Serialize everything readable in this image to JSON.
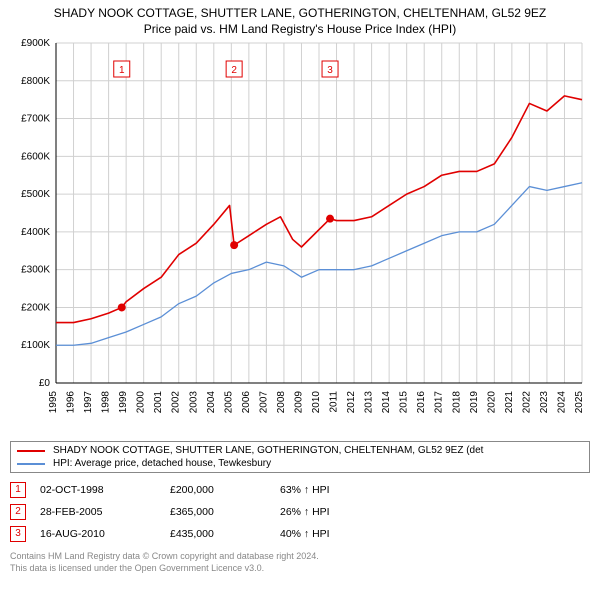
{
  "title_line1": "SHADY NOOK COTTAGE, SHUTTER LANE, GOTHERINGTON, CHELTENHAM, GL52 9EZ",
  "title_line2": "Price paid vs. HM Land Registry's House Price Index (HPI)",
  "chart": {
    "type": "line",
    "background_color": "#ffffff",
    "grid_color": "#d0d0d0",
    "axis_color": "#000000",
    "label_fontsize": 10,
    "tick_fontsize": 10,
    "xlim": [
      1995,
      2025
    ],
    "ylim": [
      0,
      900000
    ],
    "ytick_step": 100000,
    "ytick_labels": [
      "£0",
      "£100K",
      "£200K",
      "£300K",
      "£400K",
      "£500K",
      "£600K",
      "£700K",
      "£800K",
      "£900K"
    ],
    "xtick_step": 1,
    "xtick_labels": [
      "1995",
      "1996",
      "1997",
      "1998",
      "1999",
      "2000",
      "2001",
      "2002",
      "2003",
      "2004",
      "2005",
      "2006",
      "2007",
      "2008",
      "2009",
      "2010",
      "2011",
      "2012",
      "2013",
      "2014",
      "2015",
      "2016",
      "2017",
      "2018",
      "2019",
      "2020",
      "2021",
      "2022",
      "2023",
      "2024",
      "2025"
    ],
    "series": [
      {
        "name": "SHADY NOOK COTTAGE, SHUTTER LANE, GOTHERINGTON, CHELTENHAM, GL52 9EZ (det",
        "color": "#e00000",
        "line_width": 1.6,
        "x": [
          1995,
          1996,
          1997,
          1998,
          1998.75,
          1999,
          2000,
          2001,
          2002,
          2003,
          2004,
          2004.9,
          2005.16,
          2006,
          2007,
          2007.8,
          2008.5,
          2009,
          2010.63,
          2011,
          2012,
          2013,
          2014,
          2015,
          2016,
          2017,
          2018,
          2019,
          2020,
          2021,
          2022,
          2023,
          2024,
          2025
        ],
        "y": [
          160000,
          160000,
          170000,
          185000,
          200000,
          215000,
          250000,
          280000,
          340000,
          370000,
          420000,
          470000,
          365000,
          390000,
          420000,
          440000,
          380000,
          360000,
          435000,
          430000,
          430000,
          440000,
          470000,
          500000,
          520000,
          550000,
          560000,
          560000,
          580000,
          650000,
          740000,
          720000,
          760000,
          750000
        ]
      },
      {
        "name": "HPI: Average price, detached house, Tewkesbury",
        "color": "#5b8fd6",
        "line_width": 1.3,
        "x": [
          1995,
          1996,
          1997,
          1998,
          1999,
          2000,
          2001,
          2002,
          2003,
          2004,
          2005,
          2006,
          2007,
          2008,
          2009,
          2010,
          2011,
          2012,
          2013,
          2014,
          2015,
          2016,
          2017,
          2018,
          2019,
          2020,
          2021,
          2022,
          2023,
          2024,
          2025
        ],
        "y": [
          100000,
          100000,
          105000,
          120000,
          135000,
          155000,
          175000,
          210000,
          230000,
          265000,
          290000,
          300000,
          320000,
          310000,
          280000,
          300000,
          300000,
          300000,
          310000,
          330000,
          350000,
          370000,
          390000,
          400000,
          400000,
          420000,
          470000,
          520000,
          510000,
          520000,
          530000
        ]
      }
    ],
    "sale_markers": [
      {
        "label": "1",
        "x": 1998.75,
        "y": 200000
      },
      {
        "label": "2",
        "x": 2005.16,
        "y": 365000
      },
      {
        "label": "3",
        "x": 2010.63,
        "y": 435000
      }
    ],
    "marker_box_color": "#e00000",
    "marker_dot_color": "#e00000",
    "marker_dot_radius": 4
  },
  "legend": {
    "items": [
      {
        "color": "#e00000",
        "label": "SHADY NOOK COTTAGE, SHUTTER LANE, GOTHERINGTON, CHELTENHAM, GL52 9EZ (det"
      },
      {
        "color": "#5b8fd6",
        "label": "HPI: Average price, detached house, Tewkesbury"
      }
    ]
  },
  "sales": [
    {
      "marker": "1",
      "date": "02-OCT-1998",
      "price": "£200,000",
      "delta": "63% ↑ HPI"
    },
    {
      "marker": "2",
      "date": "28-FEB-2005",
      "price": "£365,000",
      "delta": "26% ↑ HPI"
    },
    {
      "marker": "3",
      "date": "16-AUG-2010",
      "price": "£435,000",
      "delta": "40% ↑ HPI"
    }
  ],
  "footnote_line1": "Contains HM Land Registry data © Crown copyright and database right 2024.",
  "footnote_line2": "This data is licensed under the Open Government Licence v3.0."
}
